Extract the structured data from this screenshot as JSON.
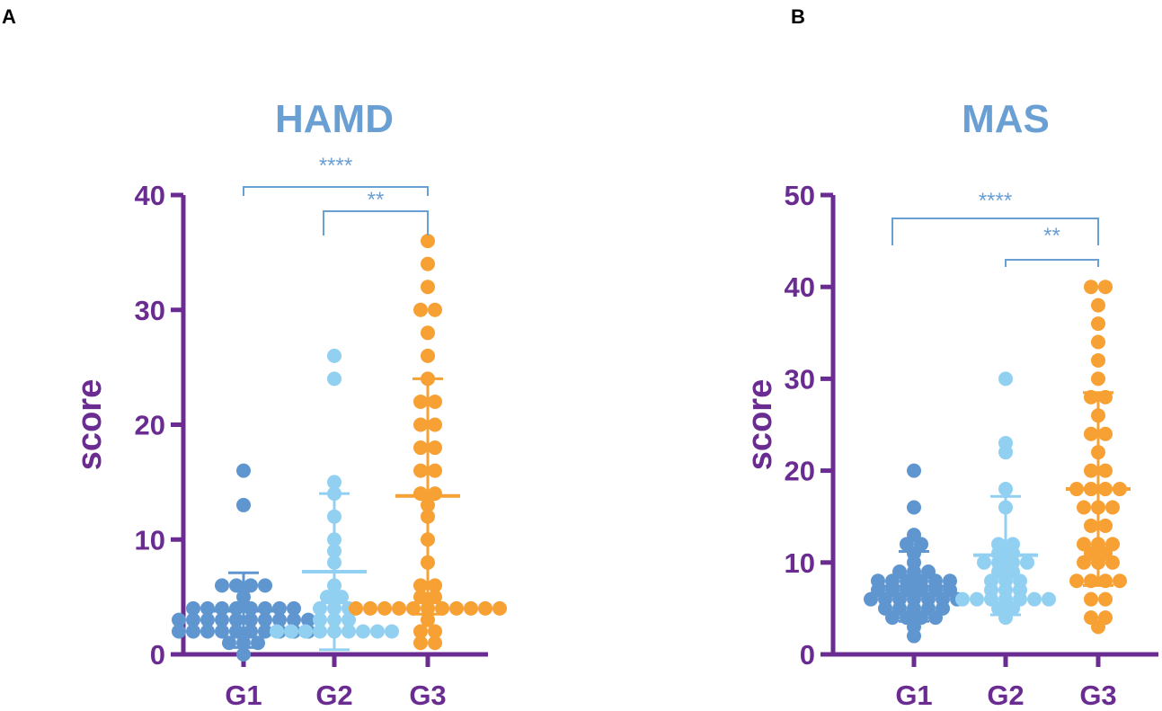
{
  "colors": {
    "axis": "#6a2c91",
    "title": "#6a9fd3",
    "sig": "#6a9fd3",
    "g1": "#5f96cf",
    "g2": "#92d0f2",
    "g3": "#f7a033"
  },
  "chart_data": [
    {
      "panel": "A",
      "type": "scatter",
      "title": "HAMD",
      "ylabel": "score",
      "xlabel": "",
      "ylim": [
        0,
        40
      ],
      "yticks": [
        0,
        10,
        20,
        30,
        40
      ],
      "categories": [
        "G1",
        "G2",
        "G3"
      ],
      "series": [
        {
          "name": "G1",
          "mean": 3.8,
          "sd_low": 0.6,
          "sd_high": 7.1,
          "values": [
            0,
            1,
            1,
            1,
            2,
            2,
            2,
            2,
            2,
            2,
            2,
            2,
            2,
            2,
            3,
            3,
            3,
            3,
            3,
            3,
            3,
            3,
            3,
            3,
            4,
            4,
            4,
            4,
            4,
            4,
            4,
            4,
            5,
            6,
            6,
            6,
            6,
            13,
            16
          ]
        },
        {
          "name": "G2",
          "mean": 7.2,
          "sd_low": 0.4,
          "sd_high": 14,
          "values": [
            2,
            2,
            2,
            2,
            2,
            2,
            2,
            2,
            2,
            3,
            3,
            3,
            4,
            4,
            4,
            5,
            5,
            6,
            8,
            9,
            10,
            12,
            14,
            15,
            24,
            26
          ]
        },
        {
          "name": "G3",
          "mean": 13.8,
          "sd_low": 3.5,
          "sd_high": 24,
          "values": [
            1,
            1,
            2,
            2,
            3,
            4,
            4,
            4,
            4,
            4,
            4,
            4,
            4,
            4,
            4,
            4,
            5,
            5,
            6,
            6,
            8,
            10,
            12,
            13,
            14,
            14,
            16,
            16,
            18,
            18,
            20,
            20,
            22,
            22,
            24,
            26,
            28,
            30,
            30,
            32,
            34,
            36
          ]
        }
      ],
      "significance": [
        {
          "from": "G1",
          "to": "G3",
          "label": "****"
        },
        {
          "from": "G2",
          "to": "G3",
          "label": "**"
        }
      ]
    },
    {
      "panel": "B",
      "type": "scatter",
      "title": "MAS",
      "ylabel": "score",
      "xlabel": "",
      "ylim": [
        0,
        50
      ],
      "yticks": [
        0,
        10,
        20,
        30,
        40,
        50
      ],
      "categories": [
        "G1",
        "G2",
        "G3"
      ],
      "series": [
        {
          "name": "G1",
          "mean": 7.4,
          "sd_low": 3.6,
          "sd_high": 11.2,
          "values": [
            2,
            3,
            4,
            4,
            4,
            4,
            5,
            5,
            5,
            5,
            5,
            6,
            6,
            6,
            6,
            6,
            6,
            6,
            7,
            7,
            7,
            7,
            7,
            7,
            8,
            8,
            8,
            8,
            8,
            8,
            9,
            9,
            9,
            10,
            11,
            12,
            12,
            13,
            16,
            20
          ]
        },
        {
          "name": "G2",
          "mean": 10.8,
          "sd_low": 4.3,
          "sd_high": 17.2,
          "values": [
            4,
            5,
            5,
            6,
            6,
            6,
            6,
            6,
            6,
            6,
            7,
            7,
            7,
            8,
            8,
            8,
            9,
            9,
            10,
            10,
            10,
            10,
            11,
            11,
            12,
            12,
            16,
            18,
            22,
            23,
            30
          ]
        },
        {
          "name": "G3",
          "mean": 18.0,
          "sd_low": 7.5,
          "sd_high": 28.5,
          "values": [
            3,
            4,
            4,
            6,
            6,
            8,
            8,
            8,
            8,
            10,
            10,
            10,
            11,
            11,
            12,
            12,
            12,
            14,
            14,
            16,
            16,
            16,
            18,
            18,
            18,
            18,
            20,
            20,
            22,
            24,
            24,
            26,
            28,
            28,
            30,
            32,
            34,
            36,
            38,
            40,
            40
          ]
        }
      ],
      "significance": [
        {
          "from": "G1",
          "to": "G3",
          "label": "****"
        },
        {
          "from": "G2",
          "to": "G3",
          "label": "**"
        }
      ]
    }
  ]
}
